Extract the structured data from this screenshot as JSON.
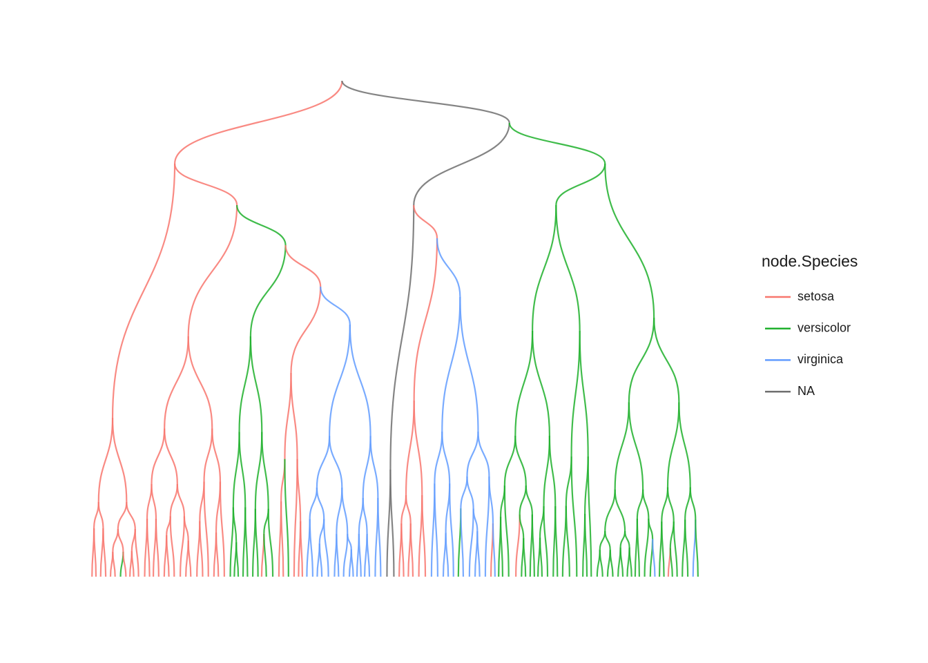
{
  "legend": {
    "title": "node.Species",
    "items": [
      {
        "name": "setosa",
        "color": "#f8766d"
      },
      {
        "name": "versicolor",
        "color": "#1fb02c"
      },
      {
        "name": "virginica",
        "color": "#619cff"
      },
      {
        "name": "NA",
        "color": "#6e6e6e"
      }
    ]
  }
}
